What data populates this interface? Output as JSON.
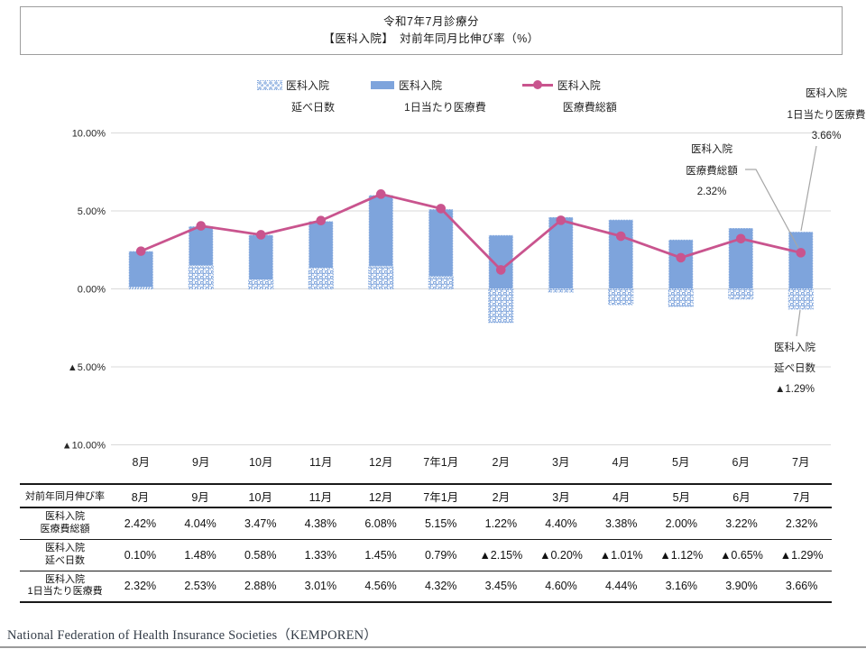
{
  "title": {
    "line1": "令和7年7月診療分",
    "line2": "【医科入院】　対前年同月比伸び率（%）"
  },
  "legend": {
    "items": [
      {
        "swatch": "dotted-bar-swatch",
        "line1": "医科入院",
        "line2": "延べ日数"
      },
      {
        "swatch": "solid-bar-swatch",
        "line1": "医科入院",
        "line2": "1日当たり医療費"
      },
      {
        "swatch": "line-marker-swatch",
        "line1": "医科入院",
        "line2": "医療費総額"
      }
    ]
  },
  "chart_data": {
    "type": "bar",
    "subtype": "stacked-bar-with-line",
    "categories": [
      "8月",
      "9月",
      "10月",
      "11月",
      "12月",
      "7年1月",
      "2月",
      "3月",
      "4月",
      "5月",
      "6月",
      "7月"
    ],
    "series": [
      {
        "name": "医科入院 延べ日数",
        "type": "bar",
        "style": "dotted-pattern",
        "values": [
          0.1,
          1.48,
          0.58,
          1.33,
          1.45,
          0.79,
          -2.15,
          -0.2,
          -1.01,
          -1.12,
          -0.65,
          -1.29
        ]
      },
      {
        "name": "医科入院 1日当たり医療費",
        "type": "bar",
        "style": "solid",
        "values": [
          2.32,
          2.53,
          2.88,
          3.01,
          4.56,
          4.32,
          3.45,
          4.6,
          4.44,
          3.16,
          3.9,
          3.66
        ]
      },
      {
        "name": "医科入院 医療費総額",
        "type": "line",
        "values": [
          2.42,
          4.04,
          3.47,
          4.38,
          6.08,
          5.15,
          1.22,
          4.4,
          3.38,
          2.0,
          3.22,
          2.32
        ]
      }
    ],
    "title": "令和7年7月診療分 【医科入院】 対前年同月比伸び率（%）",
    "xlabel": "",
    "ylabel": "",
    "ylim": [
      -10,
      10
    ],
    "yticks": [
      [
        10,
        "10.00%"
      ],
      [
        5,
        "5.00%"
      ],
      [
        0,
        "0.00%"
      ],
      [
        -5,
        "▲5.00%"
      ],
      [
        -10,
        "▲10.00%"
      ]
    ],
    "grid": true,
    "legend_position": "top",
    "colors": {
      "bar_blue": "#7EA4DC",
      "line_pink": "#C9548E",
      "grid": "#D9D9D9",
      "leader": "#A6A6A6"
    }
  },
  "annotations": {
    "per_day": {
      "line1": "医科入院",
      "line2": "1日当たり医療費",
      "line3": "3.66%"
    },
    "total": {
      "line1": "医科入院",
      "line2": "医療費総額",
      "line3": "2.32%"
    },
    "days": {
      "line1": "医科入院",
      "line2": "延べ日数",
      "line3": "▲1.29%"
    }
  },
  "table": {
    "corner_label": "対前年同月伸び率",
    "columns": [
      "8月",
      "9月",
      "10月",
      "11月",
      "12月",
      "7年1月",
      "2月",
      "3月",
      "4月",
      "5月",
      "6月",
      "7月"
    ],
    "rows": [
      {
        "label_line1": "医科入院",
        "label_line2": "医療費総額",
        "values": [
          "2.42%",
          "4.04%",
          "3.47%",
          "4.38%",
          "6.08%",
          "5.15%",
          "1.22%",
          "4.40%",
          "3.38%",
          "2.00%",
          "3.22%",
          "2.32%"
        ]
      },
      {
        "label_line1": "医科入院",
        "label_line2": "延べ日数",
        "values": [
          "0.10%",
          "1.48%",
          "0.58%",
          "1.33%",
          "1.45%",
          "0.79%",
          "▲2.15%",
          "▲0.20%",
          "▲1.01%",
          "▲1.12%",
          "▲0.65%",
          "▲1.29%"
        ]
      },
      {
        "label_line1": "医科入院",
        "label_line2": "1日当たり医療費",
        "values": [
          "2.32%",
          "2.53%",
          "2.88%",
          "3.01%",
          "4.56%",
          "4.32%",
          "3.45%",
          "4.60%",
          "4.44%",
          "3.16%",
          "3.90%",
          "3.66%"
        ]
      }
    ]
  },
  "footer": {
    "source": "National Federation of Health Insurance Societies（KEMPOREN）"
  }
}
